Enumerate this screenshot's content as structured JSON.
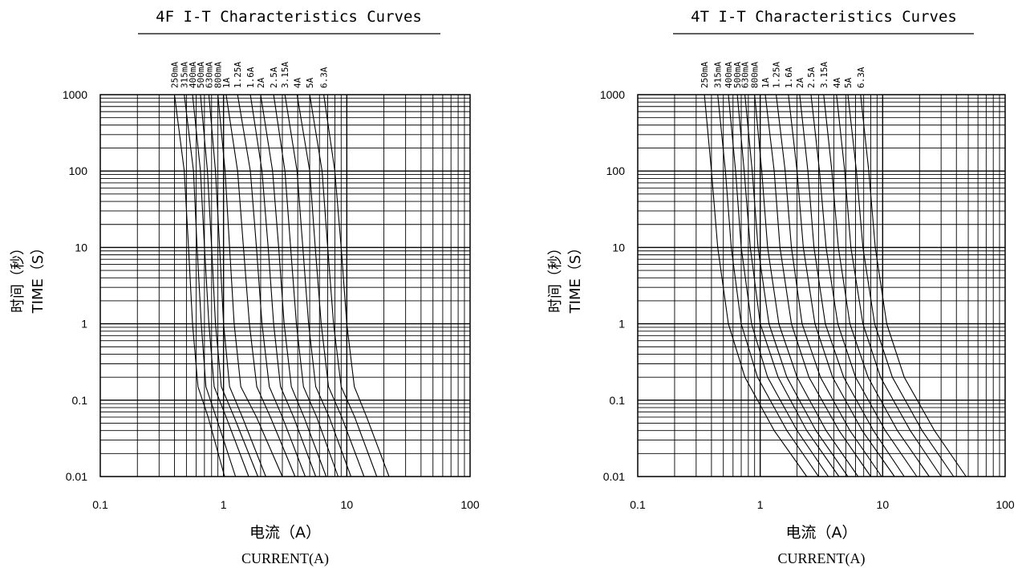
{
  "chart_data": [
    {
      "type": "line",
      "title": "4F I-T Characteristics Curves",
      "xlabel": "电流（A）",
      "xlabel2": "CURRENT(A)",
      "ylabel": "时间（秒）",
      "ylabel2": "TIME（S）",
      "x_scale": "log",
      "y_scale": "log",
      "xlim": [
        0.1,
        100
      ],
      "ylim": [
        0.01,
        1000
      ],
      "x_ticks": [
        "0.1",
        "1",
        "10",
        "100"
      ],
      "y_ticks": [
        "1000",
        "100",
        "10",
        "1",
        "0.1",
        "0.01"
      ],
      "grid": true,
      "series": [
        {
          "name": "250mA",
          "x": [
            0.4,
            0.48,
            0.52,
            0.56,
            0.62,
            0.75,
            1.02
          ],
          "y": [
            1000,
            100,
            10,
            1,
            0.15,
            0.06,
            0.01
          ]
        },
        {
          "name": "315mA",
          "x": [
            0.48,
            0.57,
            0.61,
            0.66,
            0.72,
            0.87,
            1.25
          ],
          "y": [
            1000,
            100,
            10,
            1,
            0.15,
            0.06,
            0.01
          ]
        },
        {
          "name": "400mA",
          "x": [
            0.56,
            0.65,
            0.7,
            0.76,
            0.84,
            1.05,
            1.6
          ],
          "y": [
            1000,
            100,
            10,
            1,
            0.15,
            0.06,
            0.01
          ]
        },
        {
          "name": "500mA",
          "x": [
            0.65,
            0.74,
            0.8,
            0.86,
            0.96,
            1.22,
            1.9
          ],
          "y": [
            1000,
            100,
            10,
            1,
            0.15,
            0.06,
            0.01
          ]
        },
        {
          "name": "630mA",
          "x": [
            0.76,
            0.86,
            0.93,
            1.0,
            1.12,
            1.42,
            2.2
          ],
          "y": [
            1000,
            100,
            10,
            1,
            0.15,
            0.06,
            0.01
          ]
        },
        {
          "name": "800mA",
          "x": [
            0.9,
            1.03,
            1.12,
            1.22,
            1.38,
            1.85,
            3.0
          ],
          "y": [
            1000,
            100,
            10,
            1,
            0.15,
            0.06,
            0.01
          ]
        },
        {
          "name": "1A",
          "x": [
            1.05,
            1.3,
            1.45,
            1.62,
            1.86,
            2.4,
            3.8
          ],
          "y": [
            1000,
            100,
            10,
            1,
            0.15,
            0.06,
            0.01
          ]
        },
        {
          "name": "1.25A",
          "x": [
            1.3,
            1.65,
            1.85,
            2.05,
            2.35,
            3.0,
            4.6
          ],
          "y": [
            1000,
            100,
            10,
            1,
            0.15,
            0.06,
            0.01
          ]
        },
        {
          "name": "1.6A",
          "x": [
            1.65,
            2.05,
            2.3,
            2.55,
            2.9,
            3.7,
            5.6
          ],
          "y": [
            1000,
            100,
            10,
            1,
            0.15,
            0.06,
            0.01
          ]
        },
        {
          "name": "2A",
          "x": [
            2.0,
            2.5,
            2.8,
            3.1,
            3.55,
            4.5,
            6.8
          ],
          "y": [
            1000,
            100,
            10,
            1,
            0.15,
            0.06,
            0.01
          ]
        },
        {
          "name": "2.5A",
          "x": [
            2.55,
            3.15,
            3.5,
            3.9,
            4.45,
            5.7,
            8.5
          ],
          "y": [
            1000,
            100,
            10,
            1,
            0.15,
            0.06,
            0.01
          ]
        },
        {
          "name": "3.15A",
          "x": [
            3.15,
            3.95,
            4.4,
            4.9,
            5.6,
            7.2,
            10.8
          ],
          "y": [
            1000,
            100,
            10,
            1,
            0.15,
            0.06,
            0.01
          ]
        },
        {
          "name": "4A",
          "x": [
            3.95,
            5.0,
            5.55,
            6.2,
            7.1,
            9.1,
            13.8
          ],
          "y": [
            1000,
            100,
            10,
            1,
            0.15,
            0.06,
            0.01
          ]
        },
        {
          "name": "5A",
          "x": [
            5.0,
            6.3,
            7.0,
            7.8,
            9.0,
            11.6,
            17.5
          ],
          "y": [
            1000,
            100,
            10,
            1,
            0.15,
            0.06,
            0.01
          ]
        },
        {
          "name": "6.3A",
          "x": [
            6.5,
            8.0,
            9.0,
            10.0,
            11.5,
            14.5,
            22.0
          ],
          "y": [
            1000,
            100,
            10,
            1,
            0.15,
            0.06,
            0.01
          ]
        }
      ]
    },
    {
      "type": "line",
      "title": "4T I-T Characteristics Curves",
      "xlabel": "电流（A）",
      "xlabel2": "CURRENT(A)",
      "ylabel": "时间（秒）",
      "ylabel2": "TIME（S）",
      "x_scale": "log",
      "y_scale": "log",
      "xlim": [
        0.1,
        100
      ],
      "ylim": [
        0.01,
        1000
      ],
      "x_ticks": [
        "0.1",
        "1",
        "10",
        "100"
      ],
      "y_ticks": [
        "1000",
        "100",
        "10",
        "1",
        "0.1",
        "0.01"
      ],
      "grid": true,
      "series": [
        {
          "name": "250mA",
          "x": [
            0.35,
            0.4,
            0.45,
            0.55,
            0.75,
            1.3,
            2.4
          ],
          "y": [
            1000,
            100,
            10,
            1,
            0.2,
            0.04,
            0.01
          ]
        },
        {
          "name": "315mA",
          "x": [
            0.45,
            0.52,
            0.58,
            0.7,
            0.95,
            1.65,
            3.0
          ],
          "y": [
            1000,
            100,
            10,
            1,
            0.2,
            0.04,
            0.01
          ]
        },
        {
          "name": "400mA",
          "x": [
            0.55,
            0.63,
            0.7,
            0.85,
            1.15,
            2.0,
            3.6
          ],
          "y": [
            1000,
            100,
            10,
            1,
            0.2,
            0.04,
            0.01
          ]
        },
        {
          "name": "500mA",
          "x": [
            0.65,
            0.74,
            0.83,
            1.0,
            1.4,
            2.4,
            4.4
          ],
          "y": [
            1000,
            100,
            10,
            1,
            0.2,
            0.04,
            0.01
          ]
        },
        {
          "name": "630mA",
          "x": [
            0.75,
            0.86,
            0.96,
            1.18,
            1.65,
            2.85,
            5.2
          ],
          "y": [
            1000,
            100,
            10,
            1,
            0.2,
            0.04,
            0.01
          ]
        },
        {
          "name": "800mA",
          "x": [
            0.9,
            1.03,
            1.15,
            1.42,
            2.0,
            3.45,
            6.3
          ],
          "y": [
            1000,
            100,
            10,
            1,
            0.2,
            0.04,
            0.01
          ]
        },
        {
          "name": "1A",
          "x": [
            1.1,
            1.3,
            1.45,
            1.8,
            2.5,
            4.4,
            8.0
          ],
          "y": [
            1000,
            100,
            10,
            1,
            0.2,
            0.04,
            0.01
          ]
        },
        {
          "name": "1.25A",
          "x": [
            1.35,
            1.6,
            1.8,
            2.2,
            3.1,
            5.4,
            9.8
          ],
          "y": [
            1000,
            100,
            10,
            1,
            0.2,
            0.04,
            0.01
          ]
        },
        {
          "name": "1.6A",
          "x": [
            1.7,
            2.0,
            2.25,
            2.8,
            3.9,
            6.8,
            12.5
          ],
          "y": [
            1000,
            100,
            10,
            1,
            0.2,
            0.04,
            0.01
          ]
        },
        {
          "name": "2A",
          "x": [
            2.1,
            2.45,
            2.75,
            3.4,
            4.8,
            8.4,
            15.0
          ],
          "y": [
            1000,
            100,
            10,
            1,
            0.2,
            0.04,
            0.01
          ]
        },
        {
          "name": "2.5A",
          "x": [
            2.6,
            3.05,
            3.45,
            4.3,
            6.0,
            10.5,
            19.0
          ],
          "y": [
            1000,
            100,
            10,
            1,
            0.2,
            0.04,
            0.01
          ]
        },
        {
          "name": "3.15A",
          "x": [
            3.3,
            3.85,
            4.35,
            5.4,
            7.6,
            13.2,
            24.0
          ],
          "y": [
            1000,
            100,
            10,
            1,
            0.2,
            0.04,
            0.01
          ]
        },
        {
          "name": "4A",
          "x": [
            4.2,
            4.9,
            5.5,
            6.9,
            9.6,
            16.8,
            30.0
          ],
          "y": [
            1000,
            100,
            10,
            1,
            0.2,
            0.04,
            0.01
          ]
        },
        {
          "name": "5A",
          "x": [
            5.2,
            6.1,
            6.9,
            8.6,
            12.0,
            21.0,
            38.0
          ],
          "y": [
            1000,
            100,
            10,
            1,
            0.2,
            0.04,
            0.01
          ]
        },
        {
          "name": "6.3A",
          "x": [
            6.6,
            7.7,
            8.7,
            10.8,
            15.0,
            26.5,
            48.0
          ],
          "y": [
            1000,
            100,
            10,
            1,
            0.2,
            0.04,
            0.01
          ]
        }
      ]
    }
  ]
}
